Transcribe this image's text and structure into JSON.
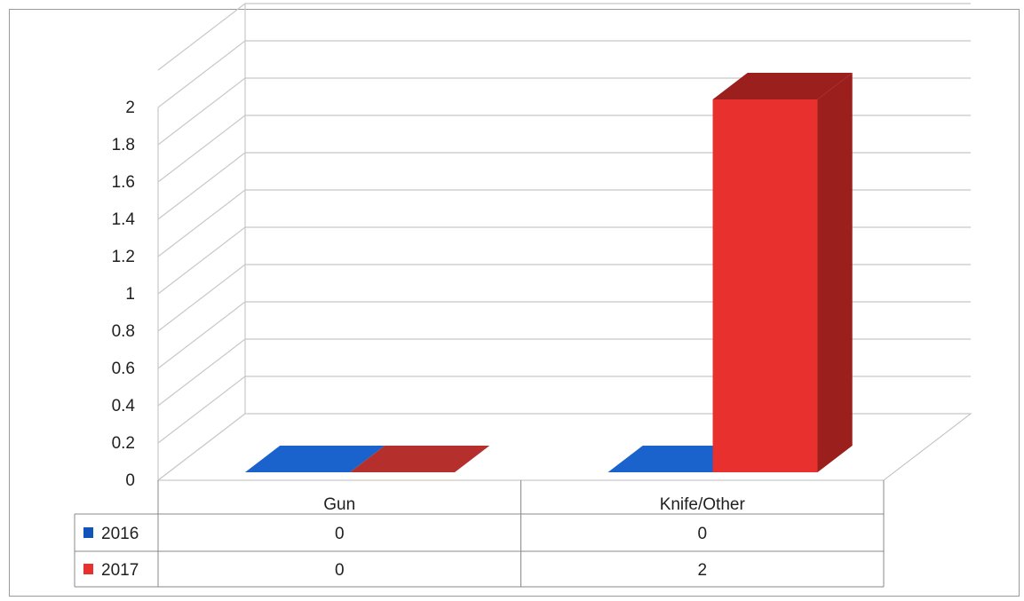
{
  "chart_data": {
    "type": "bar",
    "style": "3d-clustered-column-with-data-table",
    "categories": [
      "Gun",
      "Knife/Other"
    ],
    "series": [
      {
        "name": "2016",
        "values": [
          0,
          0
        ],
        "color": "#1254b8",
        "side_color": "#0c3b86",
        "top_color": "#1a62cc"
      },
      {
        "name": "2017",
        "values": [
          0,
          2
        ],
        "color": "#e8302e",
        "side_color": "#9b1f1d",
        "top_color": "#b5302c"
      }
    ],
    "y_ticks": [
      "0",
      "0.2",
      "0.4",
      "0.6",
      "0.8",
      "1",
      "1.2",
      "1.4",
      "1.6",
      "1.8",
      "2"
    ],
    "ylim": [
      0,
      2
    ],
    "grid": true,
    "legend": "data-table-left",
    "data_table": {
      "rows": [
        {
          "series": "2016",
          "cells": [
            "0",
            "0"
          ]
        },
        {
          "series": "2017",
          "cells": [
            "0",
            "2"
          ]
        }
      ]
    }
  }
}
